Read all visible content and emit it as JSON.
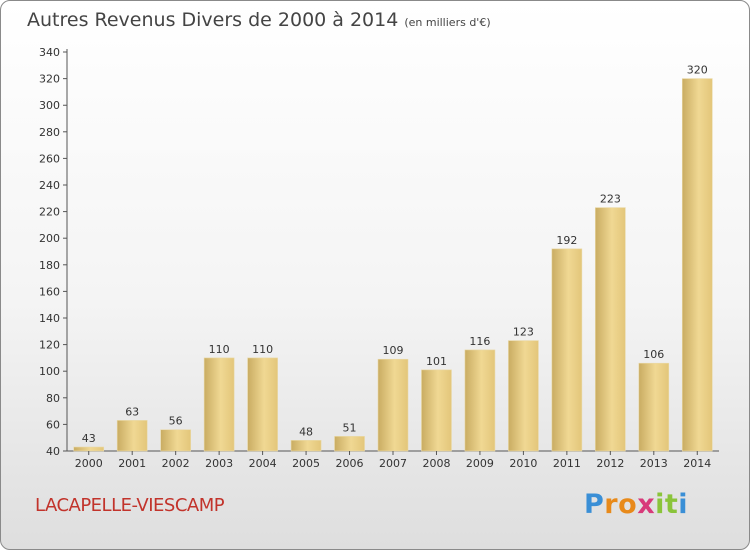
{
  "chart_data": {
    "type": "bar",
    "title": "Autres Revenus Divers de 2000 à 2014",
    "unit": "(en milliers d'€)",
    "categories": [
      "2000",
      "2001",
      "2002",
      "2003",
      "2004",
      "2005",
      "2006",
      "2007",
      "2008",
      "2009",
      "2010",
      "2011",
      "2012",
      "2013",
      "2014"
    ],
    "values": [
      43,
      63,
      56,
      110,
      110,
      48,
      51,
      109,
      101,
      116,
      123,
      192,
      223,
      106,
      320
    ],
    "ylim": [
      40,
      340
    ],
    "yticks": [
      40,
      60,
      80,
      100,
      120,
      140,
      160,
      180,
      200,
      220,
      240,
      260,
      280,
      300,
      320,
      340
    ],
    "grid": false,
    "bar_color": "#e8cf88"
  },
  "commune": "LACAPELLE-VIESCAMP",
  "logo": {
    "letters": [
      "P",
      "r",
      "o",
      "x",
      "i",
      "t",
      "i"
    ],
    "colors": [
      "#3a8fd6",
      "#e88a1a",
      "#e88a1a",
      "#d83a7a",
      "#8ac43a",
      "#8ac43a",
      "#3a8fd6"
    ]
  }
}
